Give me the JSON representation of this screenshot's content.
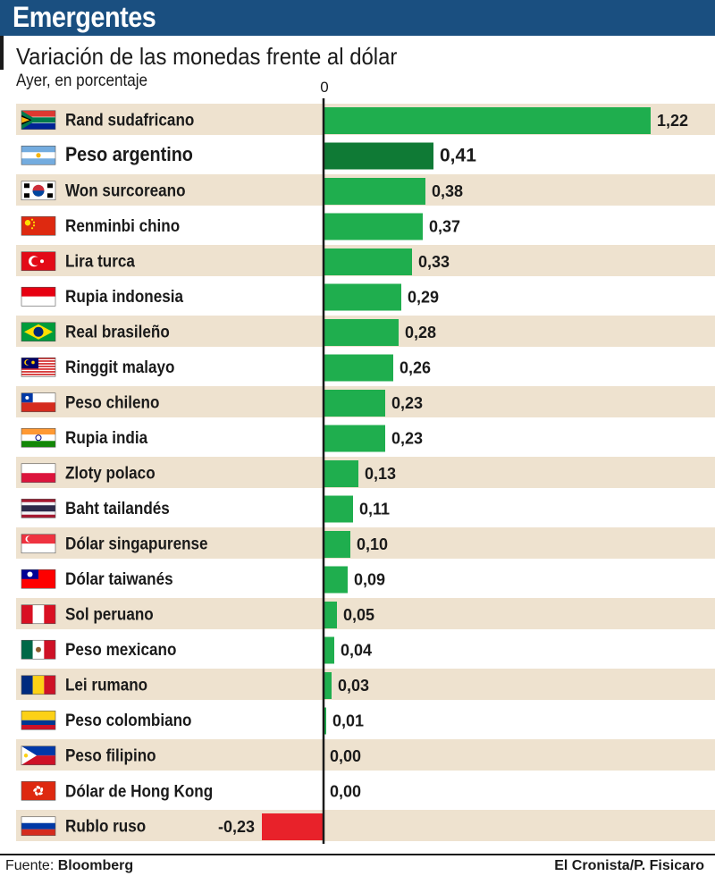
{
  "header": {
    "title": "Emergentes"
  },
  "subtitle": "Variación de las monedas frente al dólar",
  "note": "Ayer, en porcentaje",
  "zero_label": "0",
  "footer": {
    "source_prefix": "Fuente:",
    "source_name": "Bloomberg",
    "credit": "El Cronista/P. Fisicaro"
  },
  "colors": {
    "positive": "#1fae4e",
    "highlight": "#0f7a35",
    "negative": "#e8222a",
    "row_shade": "#eee2cf",
    "header_bg": "#1a4f80"
  },
  "chart_data": {
    "type": "bar",
    "orientation": "horizontal",
    "categories": [
      "Rand sudafricano",
      "Peso argentino",
      "Won surcoreano",
      "Renminbi chino",
      "Lira turca",
      "Rupia indonesia",
      "Real brasileño",
      "Ringgit malayo",
      "Peso chileno",
      "Rupia india",
      "Zloty polaco",
      "Baht tailandés",
      "Dólar singapurense",
      "Dólar taiwanés",
      "Sol peruano",
      "Peso mexicano",
      "Lei rumano",
      "Peso colombiano",
      "Peso filipino",
      "Dólar de Hong Kong",
      "Rublo ruso"
    ],
    "values": [
      1.22,
      0.41,
      0.38,
      0.37,
      0.33,
      0.29,
      0.28,
      0.26,
      0.23,
      0.23,
      0.13,
      0.11,
      0.1,
      0.09,
      0.05,
      0.04,
      0.03,
      0.01,
      0.0,
      0.0,
      -0.23
    ],
    "value_labels": [
      "1,22",
      "0,41",
      "0,38",
      "0,37",
      "0,33",
      "0,29",
      "0,28",
      "0,26",
      "0,23",
      "0,23",
      "0,13",
      "0,11",
      "0,10",
      "0,09",
      "0,05",
      "0,04",
      "0,03",
      "0,01",
      "0,00",
      "0,00",
      "-0,23"
    ],
    "highlight": "Peso argentino",
    "flags": [
      "south-africa-flag-icon",
      "argentina-flag-icon",
      "south-korea-flag-icon",
      "china-flag-icon",
      "turkey-flag-icon",
      "indonesia-flag-icon",
      "brazil-flag-icon",
      "malaysia-flag-icon",
      "chile-flag-icon",
      "india-flag-icon",
      "poland-flag-icon",
      "thailand-flag-icon",
      "singapore-flag-icon",
      "taiwan-flag-icon",
      "peru-flag-icon",
      "mexico-flag-icon",
      "romania-flag-icon",
      "colombia-flag-icon",
      "philippines-flag-icon",
      "hong-kong-flag-icon",
      "russia-flag-icon"
    ],
    "xlim": [
      -0.23,
      1.22
    ],
    "grid": false,
    "legend": "none"
  }
}
